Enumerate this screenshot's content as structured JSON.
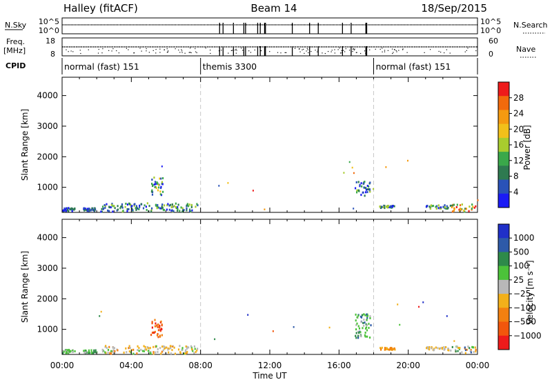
{
  "header": {
    "title_left": "Halley (fitACF)",
    "title_center": "Beam 14",
    "title_right": "18/Sep/2015"
  },
  "top_panels": {
    "nsky_label": "N.Sky",
    "nsky_ticks": [
      "10^5",
      "10^0"
    ],
    "nsearch_label": "N.Search",
    "nsearch_ticks": [
      "10^5",
      "10^0"
    ],
    "freq_label": "Freq.",
    "freq_unit": "[MHz]",
    "freq_ticks": [
      "18",
      "8"
    ],
    "nave_label": "Nave",
    "nave_ticks": [
      "60",
      "0"
    ],
    "cpid_label": "CPID",
    "cpid_segments": [
      {
        "label": "normal (fast) 151",
        "start_hour": 0
      },
      {
        "label": "themis 3300",
        "start_hour": 8
      },
      {
        "label": "normal (fast) 151",
        "start_hour": 18
      }
    ],
    "mode_change_hours": [
      8,
      18
    ],
    "gap_hours": [
      9.1,
      9.3,
      9.9,
      10.5,
      10.6,
      11.3,
      11.45,
      11.7,
      11.75,
      13.3,
      14.3,
      14.8,
      16.2,
      16.7,
      17.55,
      17.6
    ]
  },
  "chart_data": [
    {
      "type": "heatmap",
      "name": "power",
      "xlabel": "Time UT",
      "ylabel": "Slant Range [km]",
      "x_ticks": [
        "00:00",
        "04:00",
        "08:00",
        "12:00",
        "16:00",
        "20:00",
        "00:00"
      ],
      "xlim": [
        0,
        24
      ],
      "ylim": [
        180,
        4600
      ],
      "y_ticks": [
        1000,
        2000,
        3000,
        4000
      ],
      "colorbar": {
        "label": "Power [dB]",
        "range": [
          0,
          32
        ],
        "ticks": [
          "4",
          "8",
          "12",
          "16",
          "20",
          "24",
          "28"
        ],
        "colors": [
          "#1b1bf5",
          "#2a52b8",
          "#2e7a50",
          "#3aa84a",
          "#a8cc2e",
          "#f2c01a",
          "#f59a10",
          "#f26a0c",
          "#ee1b1b"
        ]
      },
      "clusters": [
        {
          "t0": 0.0,
          "t1": 0.7,
          "r0": 220,
          "r1": 330,
          "cmin": 0,
          "cmax": 12
        },
        {
          "t0": 1.2,
          "t1": 1.9,
          "r0": 220,
          "r1": 320,
          "cmin": 0,
          "cmax": 10
        },
        {
          "t0": 2.2,
          "t1": 7.8,
          "r0": 200,
          "r1": 480,
          "cmin": 2,
          "cmax": 16
        },
        {
          "t0": 5.1,
          "t1": 5.8,
          "r0": 740,
          "r1": 1320,
          "cmin": 2,
          "cmax": 20
        },
        {
          "t0": 16.9,
          "t1": 17.8,
          "r0": 720,
          "r1": 1200,
          "cmin": 0,
          "cmax": 16
        },
        {
          "t0": 18.3,
          "t1": 19.2,
          "r0": 320,
          "r1": 400,
          "cmin": 2,
          "cmax": 16
        },
        {
          "t0": 21.0,
          "t1": 22.3,
          "r0": 300,
          "r1": 420,
          "cmin": 2,
          "cmax": 18
        },
        {
          "t0": 22.3,
          "t1": 23.9,
          "r0": 200,
          "r1": 440,
          "cmin": 8,
          "cmax": 32
        }
      ]
    },
    {
      "type": "heatmap",
      "name": "velocity",
      "xlabel": "Time UT",
      "ylabel": "Slant Range [km]",
      "x_ticks": [
        "00:00",
        "04:00",
        "08:00",
        "12:00",
        "16:00",
        "20:00",
        "00:00"
      ],
      "xlim": [
        0,
        24
      ],
      "ylim": [
        180,
        4600
      ],
      "y_ticks": [
        1000,
        2000,
        3000,
        4000
      ],
      "colorbar": {
        "label": "Velocity [m s⁻¹]",
        "ticks": [
          "1000",
          "500",
          "100",
          "25",
          "−25",
          "−100",
          "−500",
          "−1000"
        ],
        "colors": [
          "#2030c8",
          "#2e5aa8",
          "#2e8a4a",
          "#4cc23a",
          "#b8b8b8",
          "#f2b01a",
          "#f28010",
          "#f2560c",
          "#ee1b1b"
        ]
      },
      "clusters": [
        {
          "t0": 0.0,
          "t1": 0.7,
          "r0": 220,
          "r1": 330,
          "cmin": 2,
          "cmax": 4
        },
        {
          "t0": 1.2,
          "t1": 2.0,
          "r0": 220,
          "r1": 320,
          "cmin": 2,
          "cmax": 4
        },
        {
          "t0": 2.2,
          "t1": 7.8,
          "r0": 200,
          "r1": 460,
          "cmin": 3,
          "cmax": 6
        },
        {
          "t0": 5.1,
          "t1": 5.8,
          "r0": 740,
          "r1": 1330,
          "cmin": 6,
          "cmax": 8
        },
        {
          "t0": 16.9,
          "t1": 17.8,
          "r0": 720,
          "r1": 1500,
          "cmin": 1,
          "cmax": 4
        },
        {
          "t0": 18.3,
          "t1": 19.2,
          "r0": 330,
          "r1": 400,
          "cmin": 5,
          "cmax": 6
        },
        {
          "t0": 21.0,
          "t1": 22.3,
          "r0": 300,
          "r1": 420,
          "cmin": 4,
          "cmax": 5
        },
        {
          "t0": 22.3,
          "t1": 23.9,
          "r0": 220,
          "r1": 440,
          "cmin": 1,
          "cmax": 6
        }
      ]
    }
  ]
}
